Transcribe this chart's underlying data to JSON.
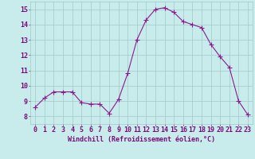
{
  "x": [
    0,
    1,
    2,
    3,
    4,
    5,
    6,
    7,
    8,
    9,
    10,
    11,
    12,
    13,
    14,
    15,
    16,
    17,
    18,
    19,
    20,
    21,
    22,
    23
  ],
  "y": [
    8.6,
    9.2,
    9.6,
    9.6,
    9.6,
    8.9,
    8.8,
    8.8,
    8.2,
    9.1,
    10.8,
    13.0,
    14.3,
    15.0,
    15.1,
    14.8,
    14.2,
    14.0,
    13.8,
    12.7,
    11.9,
    11.2,
    9.0,
    8.1
  ],
  "line_color": "#8b1a8b",
  "bg_color": "#c8ecec",
  "grid_color": "#a0c8c8",
  "text_color": "#7a0a7a",
  "xlabel": "Windchill (Refroidissement éolien,°C)",
  "xlim": [
    -0.5,
    23.5
  ],
  "ylim": [
    7.5,
    15.5
  ],
  "yticks": [
    8,
    9,
    10,
    11,
    12,
    13,
    14,
    15
  ],
  "xticks": [
    0,
    1,
    2,
    3,
    4,
    5,
    6,
    7,
    8,
    9,
    10,
    11,
    12,
    13,
    14,
    15,
    16,
    17,
    18,
    19,
    20,
    21,
    22,
    23
  ],
  "xlabel_fontsize": 6.0,
  "tick_fontsize": 6.0,
  "marker_size": 2.0,
  "line_width": 0.8
}
